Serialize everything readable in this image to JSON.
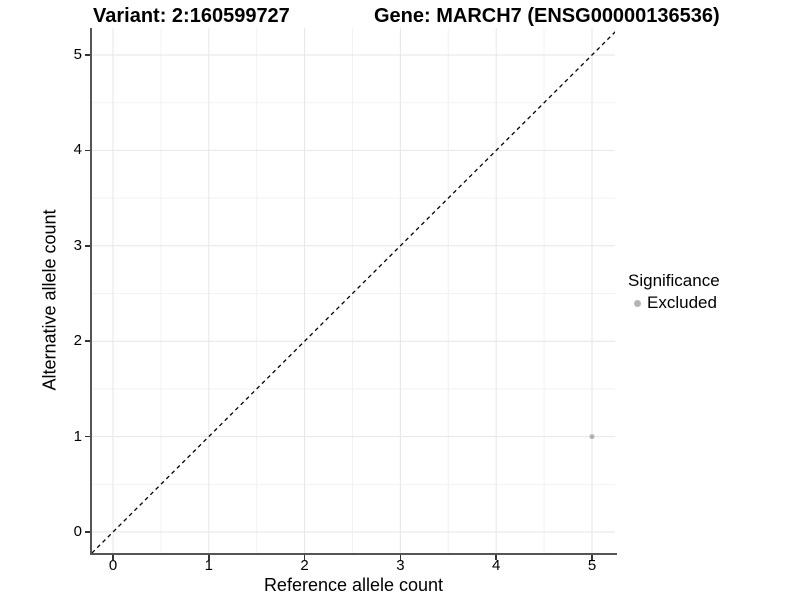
{
  "figure": {
    "title_left": "Variant: 2:160599727",
    "title_right": "Gene: MARCH7 (ENSG00000136536)"
  },
  "chart_data": {
    "type": "scatter",
    "title": "Variant: 2:160599727  |  Gene: MARCH7 (ENSG00000136536)",
    "xlabel": "Reference allele count",
    "ylabel": "Alternative allele count",
    "x_ticks": [
      0,
      1,
      2,
      3,
      4,
      5
    ],
    "y_ticks": [
      0,
      1,
      2,
      3,
      4,
      5
    ],
    "xlim": [
      -0.22,
      5.24
    ],
    "ylim": [
      -0.22,
      5.28
    ],
    "grid": "major-and-minor",
    "identity_line": {
      "type": "dashed",
      "equation": "y = x",
      "color": "#000000"
    },
    "series": [
      {
        "name": "Excluded",
        "color": "#b4b4b4",
        "points": [
          {
            "x": 5,
            "y": 1
          }
        ]
      }
    ],
    "legend": {
      "title": "Significance",
      "position": "right",
      "items": [
        {
          "label": "Excluded",
          "color": "#b4b4b4"
        }
      ]
    },
    "colors": {
      "grid_major": "#e6e6e6",
      "grid_minor": "#f2f2f2",
      "axis_line": "#555555",
      "tick_mark": "#333333",
      "point": "#b4b4b4",
      "text": "#000000"
    }
  }
}
